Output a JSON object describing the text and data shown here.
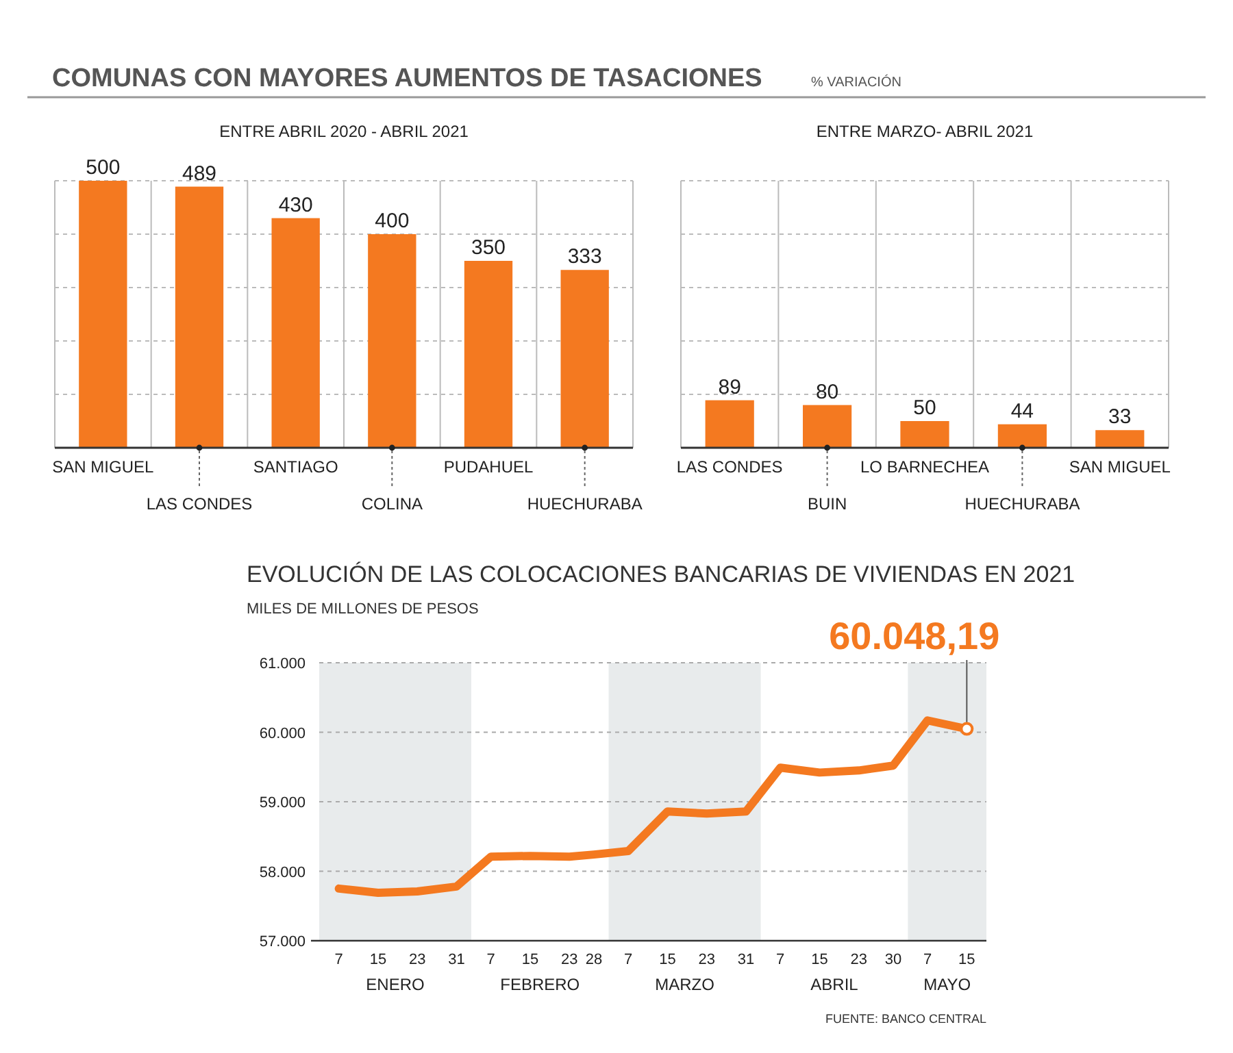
{
  "chart_data": [
    {
      "type": "other",
      "title": "COMUNAS CON MAYORES AUMENTOS DE TASACIONES",
      "subtitle": "% VARIACIÓN"
    },
    {
      "type": "bar",
      "title": "ENTRE ABRIL 2020 - ABRIL 2021",
      "categories": [
        "SAN MIGUEL",
        "LAS CONDES",
        "SANTIAGO",
        "COLINA",
        "PUDAHUEL",
        "HUECHURABA"
      ],
      "values": [
        500,
        489,
        430,
        400,
        350,
        333
      ],
      "color": "#f47920",
      "ylim": [
        0,
        500
      ],
      "yticks": [
        {
          "value": 100,
          "label": null
        },
        {
          "value": 200,
          "label": null
        },
        {
          "value": 300,
          "label": null
        },
        {
          "value": 400,
          "label": null
        },
        {
          "value": 500,
          "label": null
        }
      ],
      "grid": true,
      "data_labels": true
    },
    {
      "type": "bar",
      "title": "ENTRE MARZO- ABRIL 2021",
      "categories": [
        "LAS CONDES",
        "BUIN",
        "LO BARNECHEA",
        "HUECHURABA",
        "SAN MIGUEL"
      ],
      "values": [
        89,
        80,
        50,
        44,
        33
      ],
      "color": "#f47920",
      "ylim": [
        0,
        500
      ],
      "yticks": [
        {
          "value": 100,
          "label": null
        },
        {
          "value": 200,
          "label": null
        },
        {
          "value": 300,
          "label": null
        },
        {
          "value": 400,
          "label": null
        },
        {
          "value": 500,
          "label": null
        }
      ],
      "grid": true,
      "data_labels": true
    },
    {
      "type": "line",
      "title": "EVOLUCIÓN DE LAS COLOCACIONES BANCARIAS DE VIVIENDAS EN 2021",
      "subtitle": "MILES DE MILLONES DE PESOS",
      "x": [
        "2021-01-07",
        "2021-01-15",
        "2021-01-23",
        "2021-01-31",
        "2021-02-07",
        "2021-02-15",
        "2021-02-23",
        "2021-02-28",
        "2021-03-07",
        "2021-03-15",
        "2021-03-23",
        "2021-03-31",
        "2021-04-07",
        "2021-04-15",
        "2021-04-23",
        "2021-04-30",
        "2021-05-07",
        "2021-05-15"
      ],
      "series": [
        {
          "color": "#f47920",
          "values": [
            57750,
            57690,
            57710,
            57780,
            58210,
            58220,
            58210,
            58240,
            58290,
            58860,
            58830,
            58860,
            59490,
            59420,
            59450,
            59520,
            60170,
            60048.19
          ]
        }
      ],
      "xlim": [
        "2021-01-03",
        "2021-05-19"
      ],
      "xticks": [
        {
          "value": "2021-01-07",
          "label": "7"
        },
        {
          "value": "2021-01-15",
          "label": "15"
        },
        {
          "value": "2021-01-23",
          "label": "23"
        },
        {
          "value": "2021-01-31",
          "label": "31"
        },
        {
          "value": "2021-02-07",
          "label": "7"
        },
        {
          "value": "2021-02-15",
          "label": "15"
        },
        {
          "value": "2021-02-23",
          "label": "23"
        },
        {
          "value": "2021-02-28",
          "label": "28"
        },
        {
          "value": "2021-03-07",
          "label": "7"
        },
        {
          "value": "2021-03-15",
          "label": "15"
        },
        {
          "value": "2021-03-23",
          "label": "23"
        },
        {
          "value": "2021-03-31",
          "label": "31"
        },
        {
          "value": "2021-04-07",
          "label": "7"
        },
        {
          "value": "2021-04-15",
          "label": "15"
        },
        {
          "value": "2021-04-23",
          "label": "23"
        },
        {
          "value": "2021-04-30",
          "label": "30"
        },
        {
          "value": "2021-05-07",
          "label": "7"
        },
        {
          "value": "2021-05-15",
          "label": "15"
        }
      ],
      "ylim": [
        57000,
        61000
      ],
      "yticks": [
        {
          "value": 57000,
          "label": "57.000"
        },
        {
          "value": 58000,
          "label": "58.000"
        },
        {
          "value": 59000,
          "label": "59.000"
        },
        {
          "value": 60000,
          "label": "60.000"
        },
        {
          "value": 61000,
          "label": "61.000"
        }
      ],
      "grid": "y",
      "marker": "none",
      "line_style": "solid",
      "bands": [
        {
          "axis": "x",
          "from": "2021-01-03",
          "to": "2021-02-03",
          "label": "ENERO",
          "color": "#e8ebec"
        },
        {
          "axis": "x",
          "from": "2021-03-03",
          "to": "2021-04-03",
          "label": "MARZO",
          "color": "#e8ebec"
        },
        {
          "axis": "x",
          "from": "2021-05-03",
          "to": "2021-05-19",
          "label": "MAYO",
          "color": "#e8ebec"
        }
      ],
      "annotations": [
        {
          "text": "60.048,19",
          "x": "2021-05-15",
          "y": 60048.19
        },
        "FEBRERO",
        "ABRIL",
        "FUENTE: BANCO CENTRAL"
      ]
    }
  ]
}
